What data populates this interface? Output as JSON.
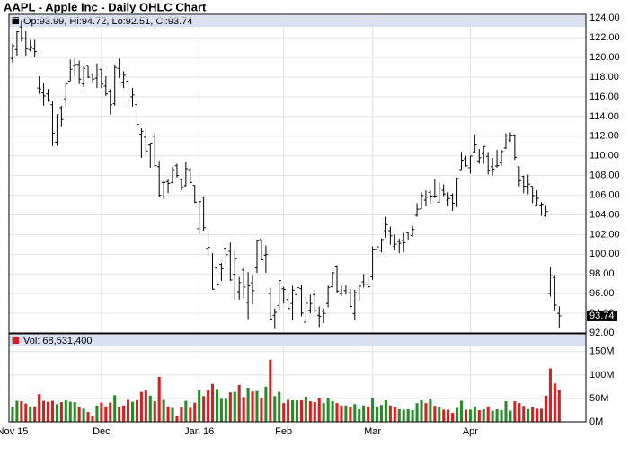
{
  "chart_data": [
    {
      "type": "ohlc",
      "title": "AAPL - Apple Inc - Daily OHLC Chart",
      "info_label": "Op:93.99, Hi:94.72, Lo:92.51, Cl:93.74",
      "last_label": "93.74",
      "color": "#000000",
      "grid": true,
      "open": [
        119.9,
        120.8,
        123.1,
        121.9,
        120.8,
        120.9,
        116.9,
        116.4,
        116.3,
        115.2,
        111.4,
        114.9,
        115.8,
        117.6,
        119.2,
        119.3,
        117.3,
        119.2,
        118.3,
        117.9,
        118.8,
        117.1,
        116.6,
        115.3,
        118.9,
        117.5,
        117.6,
        116.0,
        115.2,
        112.2,
        111.9,
        111.1,
        112.0,
        108.9,
        107.3,
        107.4,
        107.3,
        109.0,
        107.6,
        106.96,
        108.6,
        107.0,
        102.6,
        105.8,
        100.6,
        98.7,
        98.6,
        98.97,
        100.6,
        100.3,
        97.96,
        96.2,
        98.4,
        95.1,
        97.1,
        98.6,
        101.5,
        99.9,
        96.0,
        93.8,
        94.8,
        96.5,
        95.4,
        95.0,
        95.9,
        96.5,
        93.1,
        94.3,
        95.9,
        93.8,
        94.2,
        95.0,
        96.7,
        98.8,
        96.0,
        96.3,
        96.1,
        93.98,
        96.05,
        97.2,
        96.9,
        97.7,
        100.5,
        100.4,
        102.4,
        102.4,
        100.8,
        101.3,
        101.4,
        102.2,
        101.9,
        103.96,
        104.6,
        105.5,
        106.3,
        105.9,
        105.3,
        106.5,
        105.5,
        106.0,
        104.9,
        108.6,
        109.7,
        108.8,
        110.4,
        109.5,
        110.2,
        109.95,
        108.9,
        108.97,
        109.3,
        110.8,
        111.6,
        112.1,
        108.9,
        107.9,
        106.9,
        106.9,
        105.0,
        105.0,
        103.9,
        96.0,
        97.6,
        93.99
      ],
      "high": [
        121.4,
        122.7,
        123.8,
        122.7,
        121.8,
        121.8,
        118.1,
        117.4,
        116.8,
        115.6,
        114.2,
        115.1,
        117.5,
        119.8,
        119.9,
        119.7,
        119.2,
        119.2,
        118.4,
        119.4,
        118.8,
        118.1,
        116.8,
        119.3,
        119.9,
        118.6,
        117.7,
        116.9,
        115.4,
        112.8,
        112.8,
        111.2,
        112.3,
        109.5,
        107.4,
        107.7,
        108.9,
        109.2,
        107.7,
        109.4,
        108.8,
        107.0,
        105.4,
        105.9,
        102.4,
        100.1,
        99.1,
        99.1,
        100.7,
        101.2,
        100.5,
        97.7,
        98.7,
        98.2,
        97.9,
        101.5,
        101.5,
        100.9,
        96.6,
        94.5,
        97.3,
        96.7,
        96.0,
        96.8,
        97.3,
        96.9,
        95.7,
        95.9,
        96.4,
        94.7,
        94.5,
        96.8,
        98.2,
        98.9,
        96.8,
        96.9,
        96.5,
        96.4,
        96.8,
        98.0,
        97.7,
        100.8,
        100.9,
        101.6,
        103.8,
        102.8,
        102.0,
        101.6,
        102.2,
        102.3,
        102.9,
        105.2,
        106.3,
        106.5,
        106.5,
        107.6,
        107.3,
        107.1,
        106.3,
        106.2,
        107.8,
        110.4,
        110.0,
        110.0,
        112.2,
        110.7,
        110.98,
        110.4,
        109.8,
        110.6,
        110.6,
        112.3,
        112.4,
        112.2,
        108.9,
        108.0,
        108.1,
        106.9,
        106.5,
        105.3,
        105.0,
        98.7,
        97.9,
        94.72
      ],
      "low": [
        119.5,
        120.2,
        121.6,
        120.2,
        120.6,
        120.1,
        116.3,
        115.1,
        115.5,
        111.0,
        111.0,
        113.0,
        115.0,
        117.6,
        118.1,
        117.3,
        117.0,
        117.9,
        117.5,
        116.9,
        116.9,
        116.1,
        114.2,
        115.1,
        117.9,
        116.9,
        115.1,
        115.0,
        112.9,
        109.8,
        110.1,
        108.8,
        108.9,
        105.8,
        105.6,
        106.2,
        107.2,
        107.8,
        106.5,
        106.9,
        107.2,
        105.2,
        102.0,
        102.4,
        99.9,
        96.4,
        96.8,
        97.3,
        98.8,
        97.3,
        95.4,
        95.4,
        95.5,
        93.4,
        94.9,
        98.1,
        99.4,
        98.1,
        93.3,
        92.4,
        94.4,
        95.0,
        94.3,
        93.3,
        95.8,
        93.7,
        93.0,
        94.0,
        94.1,
        92.6,
        93.0,
        94.6,
        96.6,
        96.1,
        95.8,
        95.9,
        94.6,
        93.3,
        95.3,
        96.6,
        96.6,
        97.4,
        99.6,
        100.2,
        101.7,
        100.96,
        100.4,
        100.1,
        100.2,
        101.5,
        101.8,
        103.8,
        104.6,
        104.9,
        105.2,
        105.7,
        105.2,
        105.9,
        104.9,
        104.4,
        104.8,
        108.6,
        108.9,
        108.2,
        110.3,
        109.2,
        109.2,
        108.1,
        108.0,
        108.8,
        109.0,
        110.7,
        111.4,
        109.6,
        106.9,
        106.2,
        106.1,
        105.2,
        105.0,
        103.9,
        103.8,
        95.7,
        94.3,
        92.51
      ],
      "close": [
        121.2,
        122.6,
        122.0,
        120.9,
        121.1,
        120.6,
        116.8,
        116.1,
        115.7,
        112.3,
        114.2,
        113.7,
        117.3,
        118.8,
        119.3,
        117.8,
        118.9,
        118.0,
        117.8,
        118.3,
        117.3,
        116.3,
        115.2,
        119.0,
        118.3,
        118.2,
        115.6,
        116.2,
        113.2,
        112.5,
        110.5,
        111.3,
        109.0,
        106.0,
        107.3,
        107.2,
        108.6,
        108.0,
        106.8,
        108.7,
        107.3,
        105.3,
        105.35,
        102.7,
        100.7,
        96.45,
        96.96,
        98.53,
        99.96,
        97.39,
        99.52,
        97.13,
        96.66,
        96.79,
        96.3,
        101.42,
        99.44,
        99.99,
        93.42,
        94.09,
        97.34,
        96.43,
        94.48,
        96.35,
        96.6,
        94.02,
        95.01,
        94.99,
        94.27,
        93.7,
        93.99,
        96.64,
        98.12,
        96.26,
        96.04,
        96.88,
        94.69,
        96.1,
        96.76,
        96.91,
        96.69,
        100.53,
        100.75,
        101.5,
        103.01,
        101.87,
        101.03,
        101.12,
        101.17,
        102.26,
        102.52,
        104.58,
        105.97,
        105.8,
        105.92,
        105.91,
        106.72,
        106.13,
        105.67,
        105.19,
        107.68,
        109.56,
        108.99,
        109.99,
        111.12,
        109.81,
        110.96,
        108.54,
        108.66,
        109.02,
        110.44,
        112.04,
        112.1,
        109.85,
        107.48,
        106.91,
        107.13,
        105.97,
        105.68,
        105.08,
        104.35,
        97.82,
        94.83,
        93.74
      ],
      "xlim": [
        -0.8,
        129
      ],
      "xticks": [
        {
          "value": 0,
          "label": "Nov 15"
        },
        {
          "value": 20,
          "label": "Dec"
        },
        {
          "value": 42,
          "label": "Jan 16"
        },
        {
          "value": 61,
          "label": "Feb"
        },
        {
          "value": 81,
          "label": "Mar"
        },
        {
          "value": 103,
          "label": "Apr"
        }
      ],
      "ylim": [
        92,
        124.3
      ],
      "yticks": [
        {
          "value": 92,
          "label": "92.00"
        },
        {
          "value": 94,
          "label": "94.00"
        },
        {
          "value": 96,
          "label": "96.00"
        },
        {
          "value": 98,
          "label": "98.00"
        },
        {
          "value": 100,
          "label": "100.00"
        },
        {
          "value": 102,
          "label": "102.00"
        },
        {
          "value": 104,
          "label": "104.00"
        },
        {
          "value": 106,
          "label": "106.00"
        },
        {
          "value": 108,
          "label": "108.00"
        },
        {
          "value": 110,
          "label": "110.00"
        },
        {
          "value": 112,
          "label": "112.00"
        },
        {
          "value": 114,
          "label": "114.00"
        },
        {
          "value": 116,
          "label": "116.00"
        },
        {
          "value": 118,
          "label": "118.00"
        },
        {
          "value": 120,
          "label": "120.00"
        },
        {
          "value": 122,
          "label": "122.00"
        },
        {
          "value": 124,
          "label": "124.00"
        }
      ]
    },
    {
      "type": "bar",
      "info_label": "Vol: 68,531,400",
      "up_color": "#2a8a2a",
      "down_color": "#d42020",
      "values": [
        32,
        45,
        44,
        39,
        33,
        33,
        59,
        45,
        43,
        45,
        38,
        42,
        46,
        43,
        42,
        32,
        28,
        21,
        13,
        35,
        41,
        33,
        41,
        57,
        32,
        35,
        47,
        43,
        46,
        64,
        67,
        56,
        44,
        96,
        47,
        33,
        30,
        13,
        31,
        45,
        30,
        41,
        67,
        55,
        68,
        81,
        70,
        49,
        49,
        63,
        64,
        79,
        53,
        73,
        65,
        66,
        51,
        75,
        133,
        55,
        64,
        40,
        47,
        46,
        46,
        46,
        54,
        44,
        42,
        50,
        40,
        50,
        44,
        40,
        35,
        35,
        32,
        38,
        27,
        35,
        33,
        50,
        33,
        36,
        46,
        35,
        32,
        27,
        26,
        27,
        25,
        40,
        46,
        40,
        48,
        34,
        32,
        26,
        26,
        19,
        30,
        45,
        26,
        26,
        33,
        25,
        27,
        33,
        24,
        27,
        25,
        44,
        24,
        44,
        40,
        34,
        27,
        32,
        28,
        28,
        56,
        114,
        82,
        68.5314
      ],
      "ylim": [
        0,
        188
      ],
      "yticks": [
        {
          "value": 0,
          "label": "0M"
        },
        {
          "value": 50,
          "label": "50M"
        },
        {
          "value": 100,
          "label": "100M"
        },
        {
          "value": 150,
          "label": "150M"
        }
      ]
    }
  ]
}
